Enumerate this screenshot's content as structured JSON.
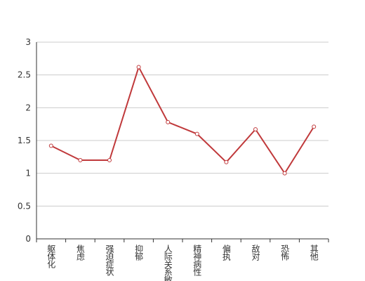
{
  "chart_data": {
    "type": "line",
    "categories": [
      "躯体化",
      "焦虑",
      "强迫症状",
      "抑郁",
      "人际关系敏感",
      "精神病性",
      "偏执",
      "敌对",
      "恐怖",
      "其他"
    ],
    "values": [
      1.42,
      1.2,
      1.2,
      2.62,
      1.78,
      1.6,
      1.17,
      1.67,
      1.0,
      1.71
    ],
    "color": "#c0393b",
    "ylim": [
      0,
      3
    ],
    "yticks": [
      0,
      0.5,
      1,
      1.5,
      2,
      2.5,
      3
    ],
    "grid": true
  }
}
